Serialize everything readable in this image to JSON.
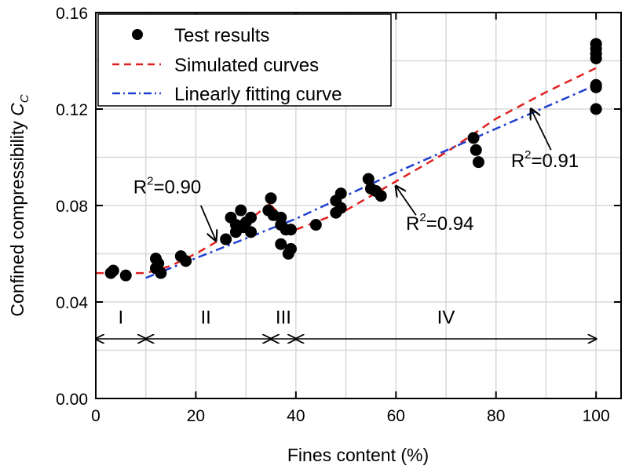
{
  "chart_data": {
    "type": "scatter",
    "xlabel": "Fines content (%)",
    "ylabel": "Confined compressibility ",
    "ylabel_symbol": "C",
    "ylabel_sub": "C",
    "xlim": [
      0,
      105
    ],
    "ylim": [
      0,
      0.16
    ],
    "xticks": [
      "0",
      "20",
      "40",
      "60",
      "80",
      "100"
    ],
    "xtick_values": [
      0,
      20,
      40,
      60,
      80,
      100
    ],
    "yticks": [
      "0.00",
      "0.04",
      "0.08",
      "0.12",
      "0.16"
    ],
    "ytick_values": [
      0,
      0.04,
      0.08,
      0.12,
      0.16
    ],
    "grid": true,
    "legend_position": "top-left",
    "series": [
      {
        "name": "Test results",
        "kind": "points",
        "color": "#000000",
        "points": [
          [
            3,
            0.052
          ],
          [
            3.5,
            0.053
          ],
          [
            6,
            0.051
          ],
          [
            12,
            0.058
          ],
          [
            12.5,
            0.056
          ],
          [
            12,
            0.054
          ],
          [
            13,
            0.052
          ],
          [
            17,
            0.059
          ],
          [
            18,
            0.057
          ],
          [
            26,
            0.066
          ],
          [
            27,
            0.075
          ],
          [
            28,
            0.072
          ],
          [
            28,
            0.069
          ],
          [
            29,
            0.078
          ],
          [
            29.5,
            0.071
          ],
          [
            30,
            0.073
          ],
          [
            31,
            0.069
          ],
          [
            31,
            0.075
          ],
          [
            34.5,
            0.078
          ],
          [
            35,
            0.083
          ],
          [
            35.5,
            0.076
          ],
          [
            37,
            0.075
          ],
          [
            37,
            0.072
          ],
          [
            38,
            0.07
          ],
          [
            39,
            0.07
          ],
          [
            37,
            0.064
          ],
          [
            38.5,
            0.06
          ],
          [
            39,
            0.062
          ],
          [
            44,
            0.072
          ],
          [
            48,
            0.077
          ],
          [
            48,
            0.082
          ],
          [
            49,
            0.085
          ],
          [
            49,
            0.079
          ],
          [
            54.5,
            0.091
          ],
          [
            55,
            0.087
          ],
          [
            56,
            0.086
          ],
          [
            57,
            0.084
          ],
          [
            75.5,
            0.108
          ],
          [
            76,
            0.103
          ],
          [
            76.5,
            0.098
          ],
          [
            100,
            0.147
          ],
          [
            100,
            0.145
          ],
          [
            100,
            0.143
          ],
          [
            100,
            0.141
          ],
          [
            100,
            0.13
          ],
          [
            100,
            0.129
          ],
          [
            100,
            0.12
          ]
        ]
      },
      {
        "name": "Simulated curves",
        "kind": "dashed",
        "color": "#e02020",
        "segments": [
          [
            [
              0,
              0.052
            ],
            [
              10,
              0.052
            ],
            [
              15,
              0.055
            ],
            [
              20,
              0.06
            ],
            [
              25,
              0.066
            ],
            [
              30,
              0.073
            ],
            [
              35,
              0.081
            ]
          ],
          [
            [
              35,
              0.08
            ],
            [
              37.5,
              0.075
            ],
            [
              40,
              0.07
            ]
          ],
          [
            [
              40,
              0.07
            ],
            [
              50,
              0.078
            ],
            [
              60,
              0.09
            ],
            [
              70,
              0.102
            ],
            [
              80,
              0.116
            ],
            [
              90,
              0.127
            ],
            [
              100,
              0.137
            ]
          ]
        ]
      },
      {
        "name": "Linearly fitting curve",
        "kind": "dashdot",
        "color": "#2040d0",
        "segments": [
          [
            [
              10,
              0.05
            ],
            [
              40,
              0.0745
            ],
            [
              60,
              0.0937
            ],
            [
              100,
              0.13
            ]
          ]
        ]
      }
    ],
    "regions": {
      "boundaries": [
        0,
        10,
        35,
        40,
        100
      ],
      "labels": [
        "I",
        "II",
        "III",
        "IV"
      ],
      "label_x": [
        5,
        22,
        37.5,
        70
      ]
    },
    "annotations": [
      {
        "text": "R",
        "sup": "2",
        "value": "=0.90",
        "x": 7.5,
        "y": 0.085,
        "arrow_from": [
          21,
          0.08
        ],
        "arrow_to": [
          24,
          0.0655
        ]
      },
      {
        "text": "R",
        "sup": "2",
        "value": "=0.94",
        "x": 62,
        "y": 0.07,
        "arrow_from": [
          64,
          0.076
        ],
        "arrow_to": [
          60,
          0.088
        ]
      },
      {
        "text": "R",
        "sup": "2",
        "value": "=0.91",
        "x": 83,
        "y": 0.096,
        "arrow_from": [
          91,
          0.103
        ],
        "arrow_to": [
          87,
          0.12
        ]
      }
    ]
  }
}
